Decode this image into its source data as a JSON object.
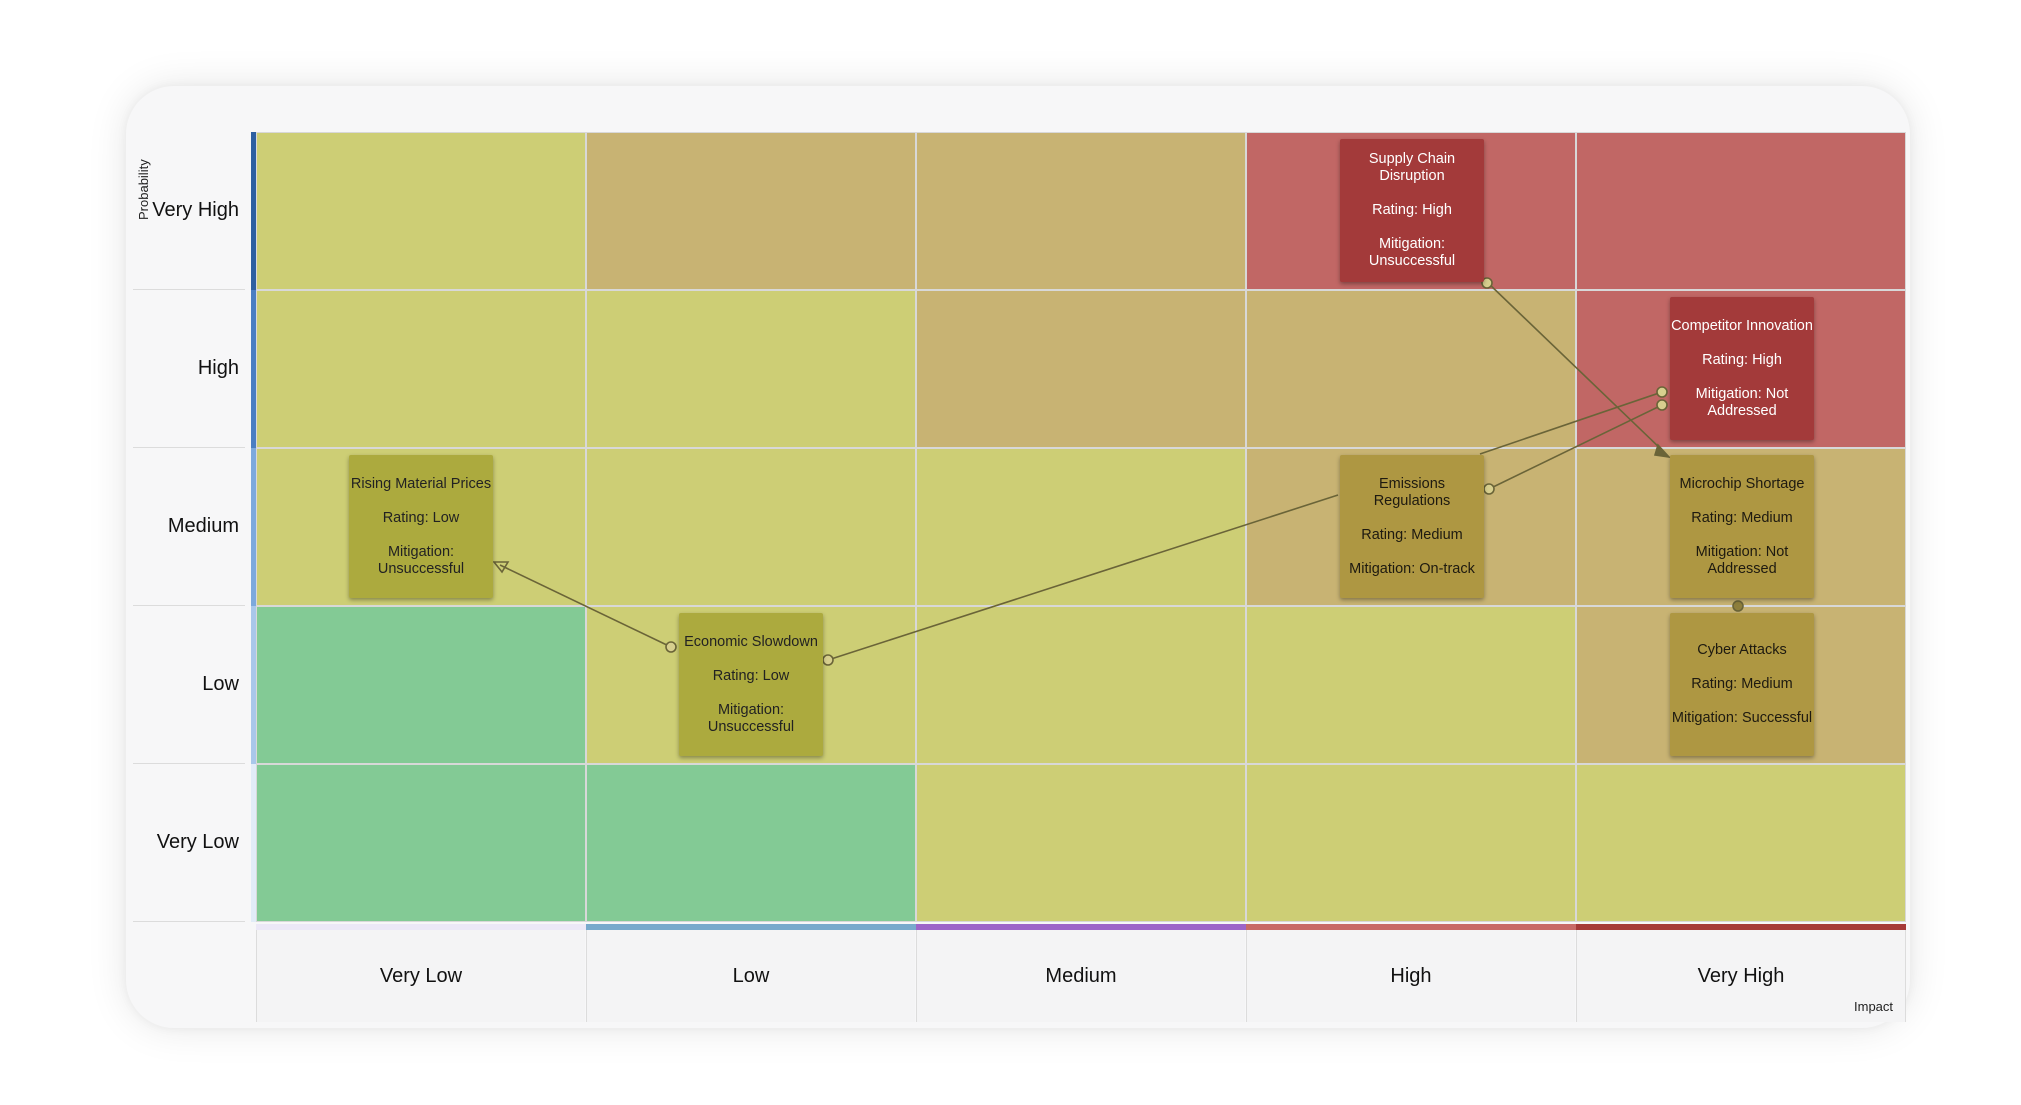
{
  "axes": {
    "probability_title": "Probability",
    "impact_title": "Impact",
    "probability_levels": [
      "Very High",
      "High",
      "Medium",
      "Low",
      "Very Low"
    ],
    "impact_levels": [
      "Very Low",
      "Low",
      "Medium",
      "High",
      "Very High"
    ]
  },
  "colors": {
    "green": "#83ca95",
    "yellow": "#cdce75",
    "tan": "#c8b373",
    "red": "#c16765",
    "row_bars": [
      "#2d5fa1",
      "#4a7ec2",
      "#7da9dc",
      "#a9c7ea",
      "#e2ecf8"
    ],
    "col_bars": [
      "#ece8f7",
      "#78a9cc",
      "#9d64c9",
      "#c86a67",
      "#a63a38"
    ]
  },
  "grid": [
    [
      "yellow",
      "tan",
      "tan",
      "red",
      "red"
    ],
    [
      "yellow",
      "yellow",
      "tan",
      "tan",
      "red"
    ],
    [
      "yellow",
      "yellow",
      "yellow",
      "tan",
      "tan"
    ],
    [
      "green",
      "yellow",
      "yellow",
      "yellow",
      "tan"
    ],
    [
      "green",
      "green",
      "yellow",
      "yellow",
      "yellow"
    ]
  ],
  "risks": [
    {
      "title": "Supply Chain Disruption",
      "rating": "Rating: High",
      "mitigation": "Mitigation: Unsuccessful"
    },
    {
      "title": "Competitor Innovation",
      "rating": "Rating: High",
      "mitigation": "Mitigation: Not Addressed"
    },
    {
      "title": "Rising Material Prices",
      "rating": "Rating: Low",
      "mitigation": "Mitigation: Unsuccessful"
    },
    {
      "title": "Emissions Regulations",
      "rating": "Rating: Medium",
      "mitigation": "Mitigation: On-track"
    },
    {
      "title": "Microchip Shortage",
      "rating": "Rating: Medium",
      "mitigation": "Mitigation: Not Addressed"
    },
    {
      "title": "Economic Slowdown",
      "rating": "Rating: Low",
      "mitigation": "Mitigation: Unsuccessful"
    },
    {
      "title": "Cyber Attacks",
      "rating": "Rating: Medium",
      "mitigation": "Mitigation: Successful"
    }
  ]
}
